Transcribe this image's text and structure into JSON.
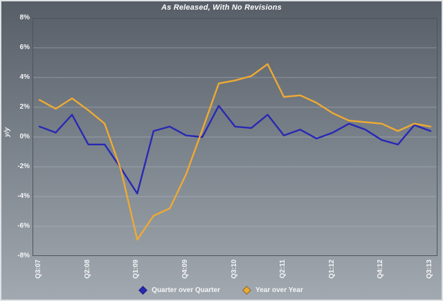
{
  "chart_data": {
    "type": "line",
    "title": "As Released, With No Revisions",
    "ylabel": "y/y",
    "ylim": [
      -8,
      8
    ],
    "y_ticks": [
      8,
      6,
      4,
      2,
      0,
      -2,
      -4,
      -6,
      -8
    ],
    "y_tick_suffix": "%",
    "grid": true,
    "legend_position": "bottom",
    "categories": [
      "Q3:07",
      "Q4:07",
      "Q1:08",
      "Q2:08",
      "Q3:08",
      "Q4:08",
      "Q1:09",
      "Q2:09",
      "Q3:09",
      "Q4:09",
      "Q1:10",
      "Q2:10",
      "Q3:10",
      "Q4:10",
      "Q1:11",
      "Q2:11",
      "Q3:11",
      "Q4:11",
      "Q1:12",
      "Q2:12",
      "Q3:12",
      "Q4:12",
      "Q1:13",
      "Q2:13",
      "Q3:13"
    ],
    "x_tick_indices": [
      0,
      3,
      6,
      9,
      12,
      15,
      18,
      21,
      24
    ],
    "x_tick_labels": [
      "Q3:07",
      "Q2:08",
      "Q1:09",
      "Q4:09",
      "Q3:10",
      "Q2:11",
      "Q1:12",
      "Q4:12",
      "Q3:13"
    ],
    "series": [
      {
        "name": "Quarter over Quarter",
        "color": "#2828b4",
        "values": [
          0.7,
          0.3,
          1.5,
          -0.5,
          -0.5,
          -2.1,
          -3.8,
          0.4,
          0.7,
          0.1,
          0.0,
          2.1,
          0.7,
          0.6,
          1.5,
          0.1,
          0.5,
          -0.1,
          0.3,
          0.9,
          0.5,
          -0.2,
          -0.5,
          0.8,
          0.4
        ]
      },
      {
        "name": "Year over Year",
        "color": "#eeaa33",
        "values": [
          2.5,
          1.9,
          2.6,
          1.8,
          0.9,
          -2.2,
          -6.9,
          -5.3,
          -4.8,
          -2.5,
          0.5,
          3.6,
          3.8,
          4.1,
          4.9,
          2.7,
          2.8,
          2.3,
          1.6,
          1.1,
          1.0,
          0.9,
          0.4,
          0.9,
          0.7
        ]
      }
    ]
  },
  "colors": {
    "background_top": "#575e67",
    "background_bottom": "#a2a9b0",
    "grid": "#bcc3c9",
    "axis": "#4d535b",
    "text": "#f4f5f7"
  }
}
